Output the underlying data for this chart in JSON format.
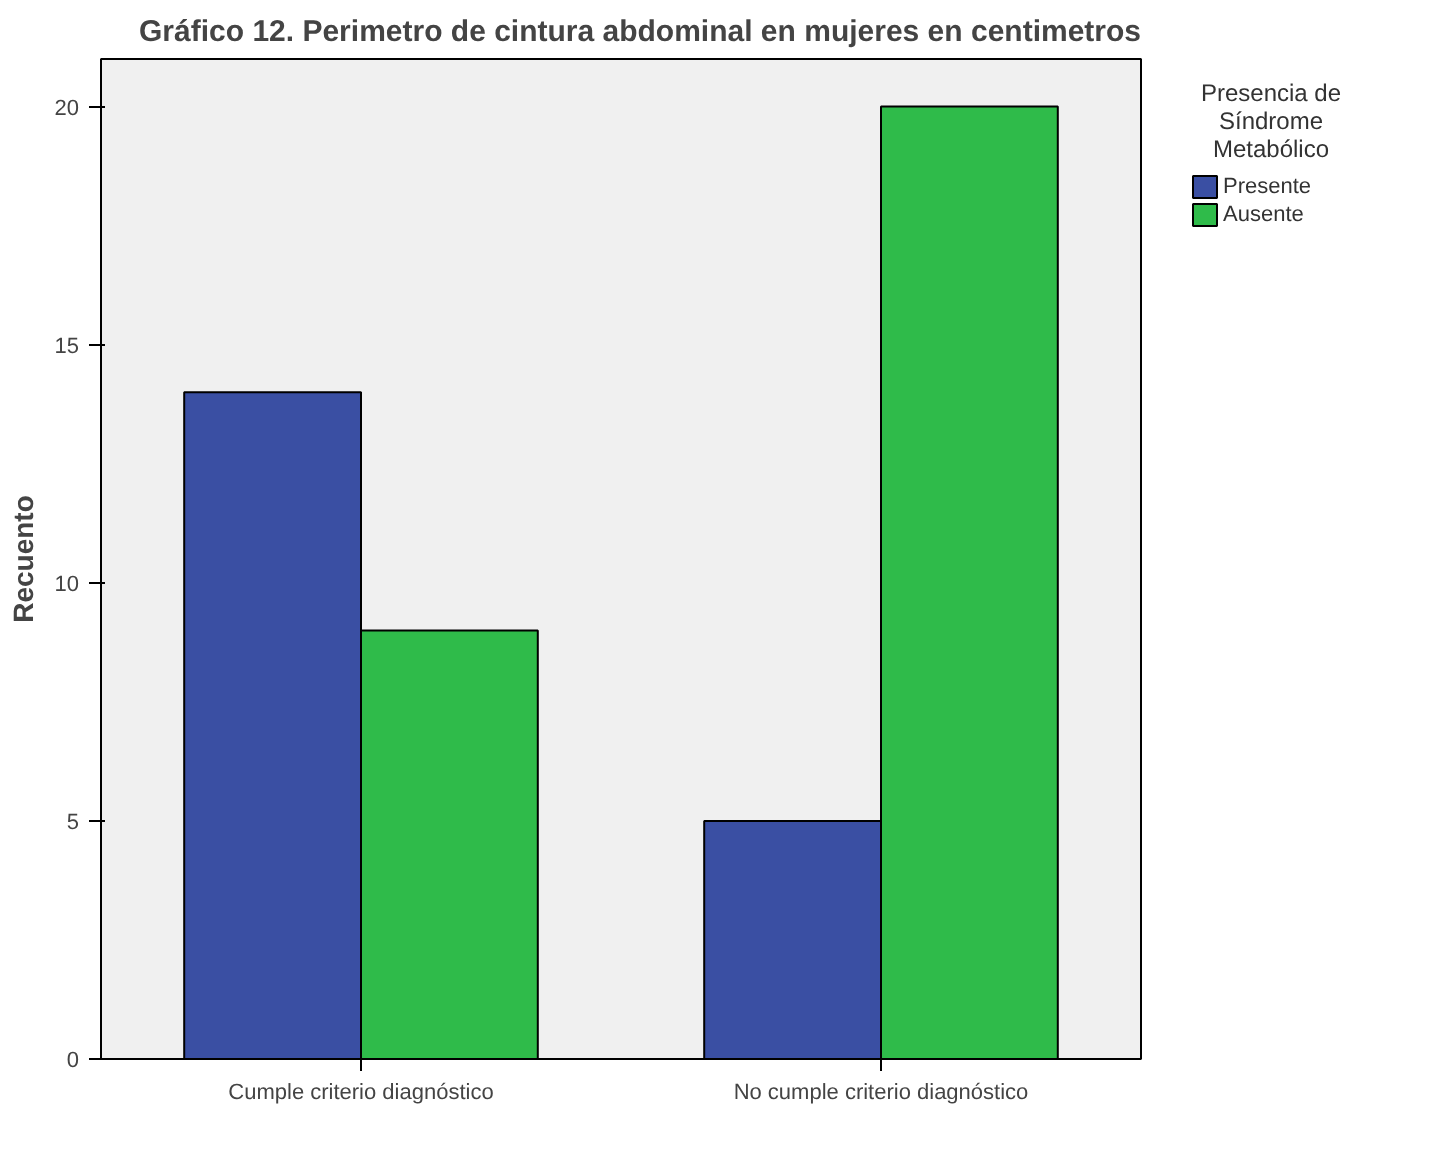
{
  "chart_data": {
    "type": "bar",
    "title": "Gráfico 12. Perimetro de cintura abdominal en mujeres en centimetros",
    "ylabel": "Recuento",
    "legend_title": "Presencia de Síndrome Metabólico",
    "categories": [
      "Cumple criterio diagnóstico",
      "No cumple criterio diagnóstico"
    ],
    "series": [
      {
        "name": "Presente",
        "color": "#3a4fa3",
        "values": [
          14,
          5
        ]
      },
      {
        "name": "Ausente",
        "color": "#2fbb4a",
        "values": [
          9,
          20
        ]
      }
    ],
    "ylim": [
      0,
      21
    ],
    "yticks": [
      0,
      5,
      10,
      15,
      20
    ],
    "grid": false,
    "legend": "right"
  }
}
